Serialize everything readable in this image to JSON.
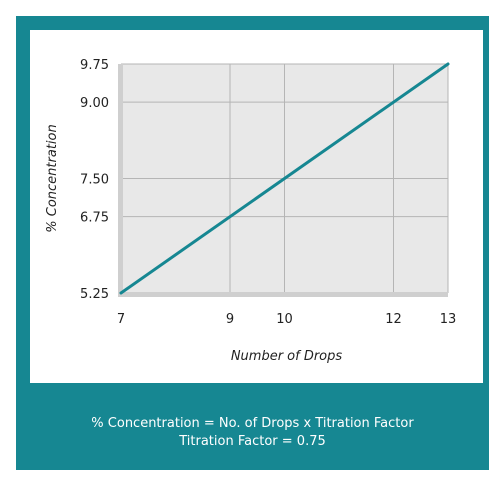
{
  "colors": {
    "panel": "#168792",
    "plot_bg": "#e8e8e8",
    "axis_band": "#cfcfcf",
    "grid": "#b5b5b5",
    "line": "#168792"
  },
  "caption": {
    "line1": "% Concentration = No. of Drops x Titration Factor",
    "line2": "Titration Factor = 0.75"
  },
  "chart_data": {
    "type": "line",
    "xlabel": "Number of Drops",
    "ylabel": "% Concentration",
    "xlim": [
      7,
      13
    ],
    "ylim": [
      5.25,
      9.75
    ],
    "x_ticks": [
      7,
      9,
      10,
      12,
      13
    ],
    "y_ticks": [
      5.25,
      6.75,
      7.5,
      9.0,
      9.75
    ],
    "x_tick_labels": [
      "7",
      "9",
      "10",
      "12",
      "13"
    ],
    "y_tick_labels": [
      "5.25",
      "6.75",
      "7.50",
      "9.00",
      "9.75"
    ],
    "grid": true,
    "series": [
      {
        "x": [
          7,
          13
        ],
        "y": [
          5.25,
          9.75
        ]
      }
    ]
  }
}
